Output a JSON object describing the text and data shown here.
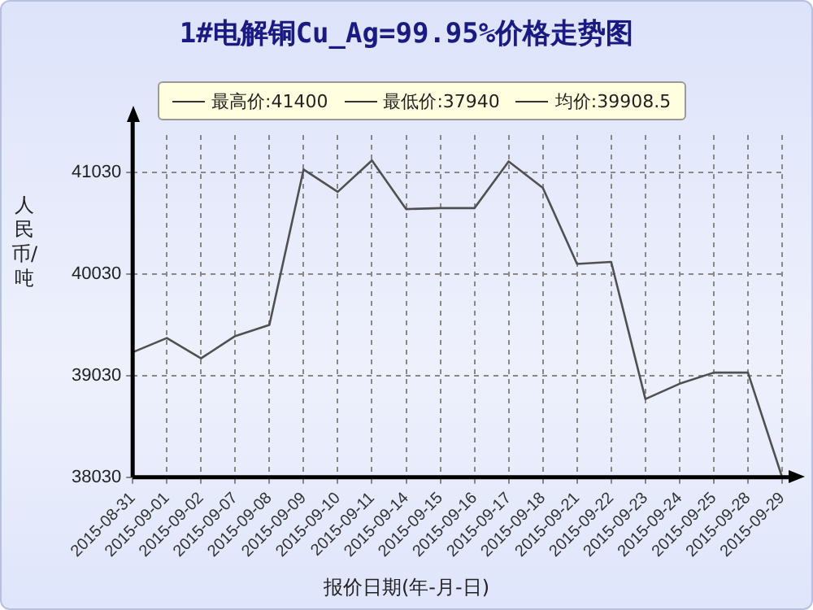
{
  "chart_data": {
    "type": "line",
    "title": "1#电解铜Cu_Ag=99.95%价格走势图",
    "xlabel": "报价日期(年-月-日)",
    "ylabel": "人民币/吨",
    "categories": [
      "2015-08-31",
      "2015-09-01",
      "2015-09-02",
      "2015-09-07",
      "2015-09-08",
      "2015-09-09",
      "2015-09-10",
      "2015-09-11",
      "2015-09-14",
      "2015-09-15",
      "2015-09-16",
      "2015-09-17",
      "2015-09-18",
      "2015-09-21",
      "2015-09-22",
      "2015-09-23",
      "2015-09-24",
      "2015-09-25",
      "2015-09-28",
      "2015-09-29"
    ],
    "series": [
      {
        "color": "#505050",
        "values": [
          39260,
          39400,
          39200,
          39420,
          39530,
          41060,
          40840,
          41150,
          40670,
          40680,
          40680,
          41140,
          40880,
          40130,
          40150,
          38800,
          38950,
          39060,
          39060,
          38030
        ]
      }
    ],
    "ylim": [
      38030,
      41400
    ],
    "yticks": [
      38030,
      39030,
      40030,
      41030
    ],
    "grid": true,
    "marker": "none",
    "line_style": "solid",
    "annotations": [
      "最高价:41400",
      "最低价:37940",
      "均价:39908.5"
    ]
  }
}
